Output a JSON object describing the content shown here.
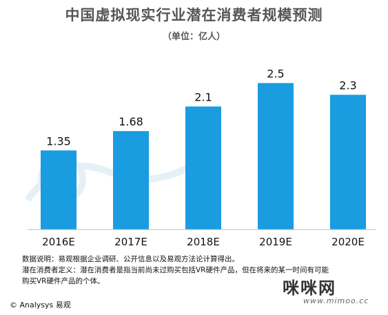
{
  "header": {
    "title": "中国虚拟现实行业潜在消费者规模预测",
    "unit": "（单位：亿人）"
  },
  "chart_data": {
    "type": "bar",
    "categories": [
      "2016E",
      "2017E",
      "2018E",
      "2019E",
      "2020E"
    ],
    "values": [
      1.35,
      1.68,
      2.1,
      2.5,
      2.3
    ],
    "value_labels": [
      "1.35",
      "1.68",
      "2.1",
      "2.5",
      "2.3"
    ],
    "ylim": [
      0,
      2.8
    ],
    "grid": false,
    "bar_color": "#1a9ce0"
  },
  "notes": {
    "line1": "数据说明：易观根据企业调研、公开信息以及易观方法论计算得出。",
    "line2": "潜在消费者定义：潜在消费者是指当前尚未过购买包括VR硬件产品，但在将来的某一时间有可能",
    "line3": "购买VR硬件产品的个体。"
  },
  "footer": {
    "copyright": "© Analysys 易观"
  },
  "overlay": {
    "logo": "咪咪网",
    "url": "www.mimoo.cc"
  }
}
